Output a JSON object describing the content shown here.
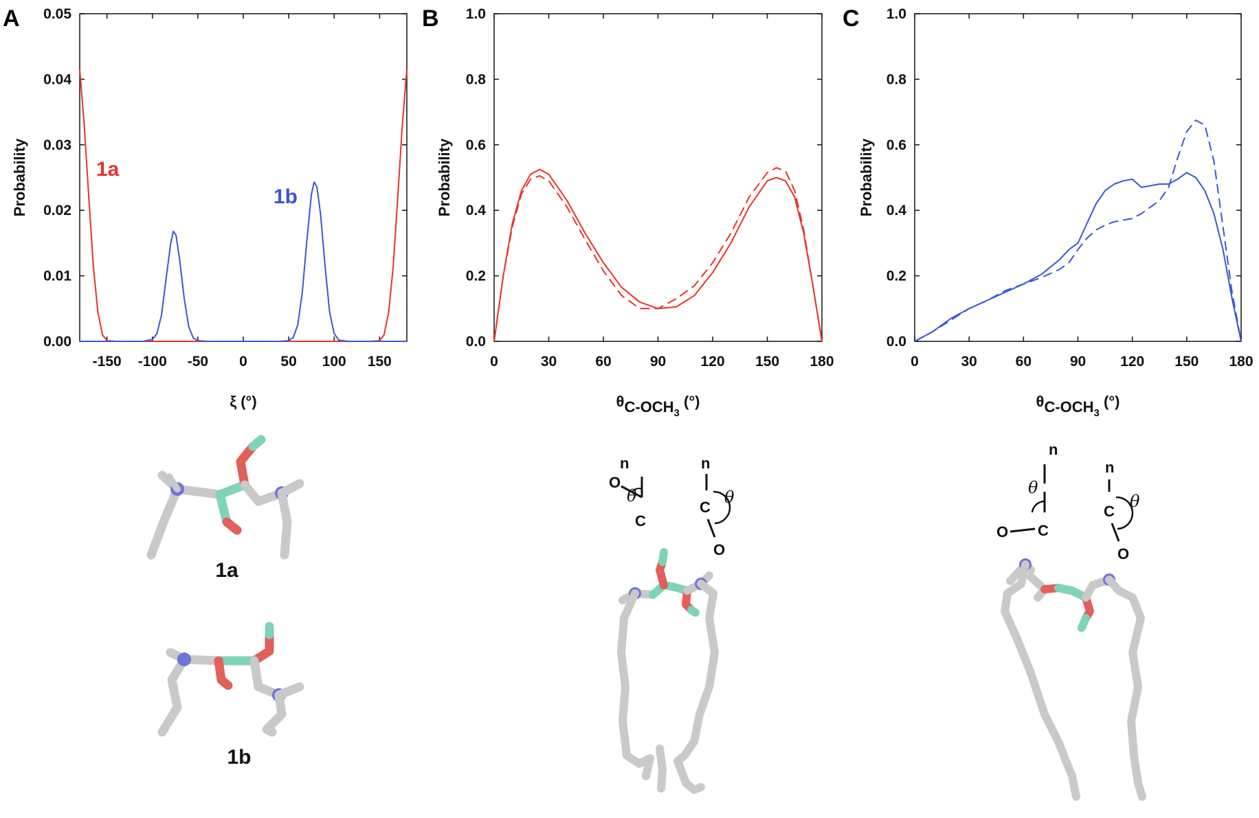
{
  "chart_data": [
    {
      "panel": "A",
      "type": "line",
      "ylabel": "Probability",
      "xlabel": "ξ (°)",
      "xlim": [
        -180,
        180
      ],
      "ylim": [
        0,
        0.05
      ],
      "xticks": [
        "-150",
        "-100",
        "-50",
        "0",
        "50",
        "100",
        "150"
      ],
      "xtick_values": [
        -150,
        -100,
        -50,
        0,
        50,
        100,
        150
      ],
      "yticks": [
        "0.00",
        "0.01",
        "0.02",
        "0.03",
        "0.04",
        "0.05"
      ],
      "ytick_values": [
        0,
        0.01,
        0.02,
        0.03,
        0.04,
        0.05
      ],
      "series": [
        {
          "name": "1a",
          "color": "#e8322b",
          "style": "solid",
          "x": [
            -180,
            -175,
            -170,
            -165,
            -160,
            -155,
            -150,
            -140,
            0,
            140,
            150,
            155,
            160,
            165,
            170,
            175,
            180
          ],
          "y": [
            0.0415,
            0.033,
            0.022,
            0.0115,
            0.0045,
            0.001,
            0.0001,
            0,
            0,
            0,
            0.0001,
            0.001,
            0.0045,
            0.0115,
            0.022,
            0.033,
            0.0415
          ]
        },
        {
          "name": "1b",
          "color": "#3a55d8",
          "style": "solid",
          "x": [
            -180,
            -110,
            -100,
            -95,
            -90,
            -85,
            -80,
            -77,
            -74,
            -70,
            -65,
            -60,
            -55,
            -50,
            -40,
            40,
            50,
            55,
            60,
            65,
            70,
            75,
            78,
            81,
            85,
            90,
            95,
            100,
            105,
            115,
            180
          ],
          "y": [
            0,
            0,
            0.0003,
            0.0012,
            0.004,
            0.0095,
            0.0148,
            0.0168,
            0.0162,
            0.0125,
            0.0065,
            0.0022,
            0.0005,
            0.0001,
            0,
            0,
            0.0001,
            0.0006,
            0.0025,
            0.0075,
            0.0155,
            0.0225,
            0.0243,
            0.0236,
            0.0195,
            0.0115,
            0.0045,
            0.0012,
            0.0002,
            0,
            0
          ]
        }
      ],
      "annotations": [
        "1a",
        "1b"
      ]
    },
    {
      "panel": "B",
      "type": "line",
      "ylabel": "Probability",
      "xlabel": "θ",
      "xlabel_sub": "C-OCH",
      "xlabel_sub3": "3",
      "xlabel_tail": " (°)",
      "xlim": [
        0,
        180
      ],
      "ylim": [
        0,
        1.0
      ],
      "xticks": [
        "0",
        "30",
        "60",
        "90",
        "120",
        "150",
        "180"
      ],
      "xtick_values": [
        0,
        30,
        60,
        90,
        120,
        150,
        180
      ],
      "yticks": [
        "0.0",
        "0.2",
        "0.4",
        "0.6",
        "0.8",
        "1.0"
      ],
      "ytick_values": [
        0,
        0.2,
        0.4,
        0.6,
        0.8,
        1.0
      ],
      "series": [
        {
          "color": "#e8322b",
          "style": "solid",
          "x": [
            0,
            5,
            10,
            15,
            20,
            25,
            30,
            40,
            50,
            60,
            70,
            80,
            90,
            100,
            110,
            120,
            130,
            140,
            150,
            155,
            160,
            165,
            170,
            175,
            180
          ],
          "y": [
            0,
            0.2,
            0.36,
            0.46,
            0.51,
            0.525,
            0.51,
            0.43,
            0.33,
            0.24,
            0.165,
            0.12,
            0.1,
            0.105,
            0.14,
            0.21,
            0.3,
            0.41,
            0.49,
            0.5,
            0.49,
            0.44,
            0.33,
            0.17,
            0
          ]
        },
        {
          "color": "#e8322b",
          "style": "dashed",
          "x": [
            0,
            5,
            10,
            15,
            20,
            25,
            30,
            40,
            50,
            60,
            70,
            80,
            90,
            100,
            110,
            120,
            130,
            140,
            150,
            155,
            160,
            165,
            170,
            175,
            180
          ],
          "y": [
            0,
            0.2,
            0.35,
            0.45,
            0.495,
            0.505,
            0.49,
            0.41,
            0.31,
            0.215,
            0.14,
            0.1,
            0.1,
            0.13,
            0.17,
            0.24,
            0.33,
            0.44,
            0.515,
            0.53,
            0.52,
            0.46,
            0.34,
            0.17,
            0
          ]
        }
      ]
    },
    {
      "panel": "C",
      "type": "line",
      "ylabel": "Probability",
      "xlabel": "θ",
      "xlabel_sub": "C-OCH",
      "xlabel_sub3": "3",
      "xlabel_tail": " (°)",
      "xlim": [
        0,
        180
      ],
      "ylim": [
        0,
        1.0
      ],
      "xticks": [
        "0",
        "30",
        "60",
        "90",
        "120",
        "150",
        "180"
      ],
      "xtick_values": [
        0,
        30,
        60,
        90,
        120,
        150,
        180
      ],
      "yticks": [
        "0.0",
        "0.2",
        "0.4",
        "0.6",
        "0.8",
        "1.0"
      ],
      "ytick_values": [
        0,
        0.2,
        0.4,
        0.6,
        0.8,
        1.0
      ],
      "series": [
        {
          "color": "#3a55d8",
          "style": "solid",
          "x": [
            0,
            10,
            20,
            30,
            40,
            50,
            60,
            70,
            80,
            85,
            90,
            95,
            100,
            105,
            110,
            115,
            120,
            125,
            130,
            135,
            140,
            145,
            150,
            155,
            160,
            165,
            170,
            175,
            180
          ],
          "y": [
            0,
            0.03,
            0.07,
            0.1,
            0.125,
            0.15,
            0.175,
            0.205,
            0.25,
            0.28,
            0.3,
            0.36,
            0.42,
            0.46,
            0.48,
            0.49,
            0.495,
            0.47,
            0.475,
            0.48,
            0.48,
            0.495,
            0.515,
            0.5,
            0.46,
            0.39,
            0.28,
            0.13,
            0
          ]
        },
        {
          "color": "#3a55d8",
          "style": "dashed",
          "x": [
            0,
            10,
            20,
            30,
            40,
            50,
            60,
            70,
            80,
            85,
            90,
            95,
            100,
            105,
            110,
            115,
            120,
            125,
            130,
            135,
            140,
            145,
            150,
            155,
            160,
            165,
            170,
            175,
            180
          ],
          "y": [
            0,
            0.03,
            0.065,
            0.1,
            0.125,
            0.155,
            0.175,
            0.195,
            0.22,
            0.24,
            0.28,
            0.315,
            0.34,
            0.355,
            0.365,
            0.37,
            0.375,
            0.39,
            0.41,
            0.43,
            0.47,
            0.56,
            0.64,
            0.675,
            0.66,
            0.55,
            0.35,
            0.15,
            0
          ]
        }
      ]
    }
  ],
  "panels": {
    "a": {
      "letter": "A",
      "label_1a": "1a",
      "label_1b": "1b",
      "mol_label_1a": "1a",
      "mol_label_1b": "1b"
    },
    "b": {
      "letter": "B",
      "n": "n",
      "o": "O",
      "c": "C",
      "theta": "θ"
    },
    "c": {
      "letter": "C",
      "n": "n",
      "o": "O",
      "c": "C",
      "theta": "θ"
    }
  },
  "colors": {
    "red": "#e8322b",
    "blue": "#3a55d8",
    "carbon": "#cccccc",
    "nitrogen": "#6f74d8",
    "oxygen": "#e0605a",
    "highlight": "#7fd3b8"
  }
}
